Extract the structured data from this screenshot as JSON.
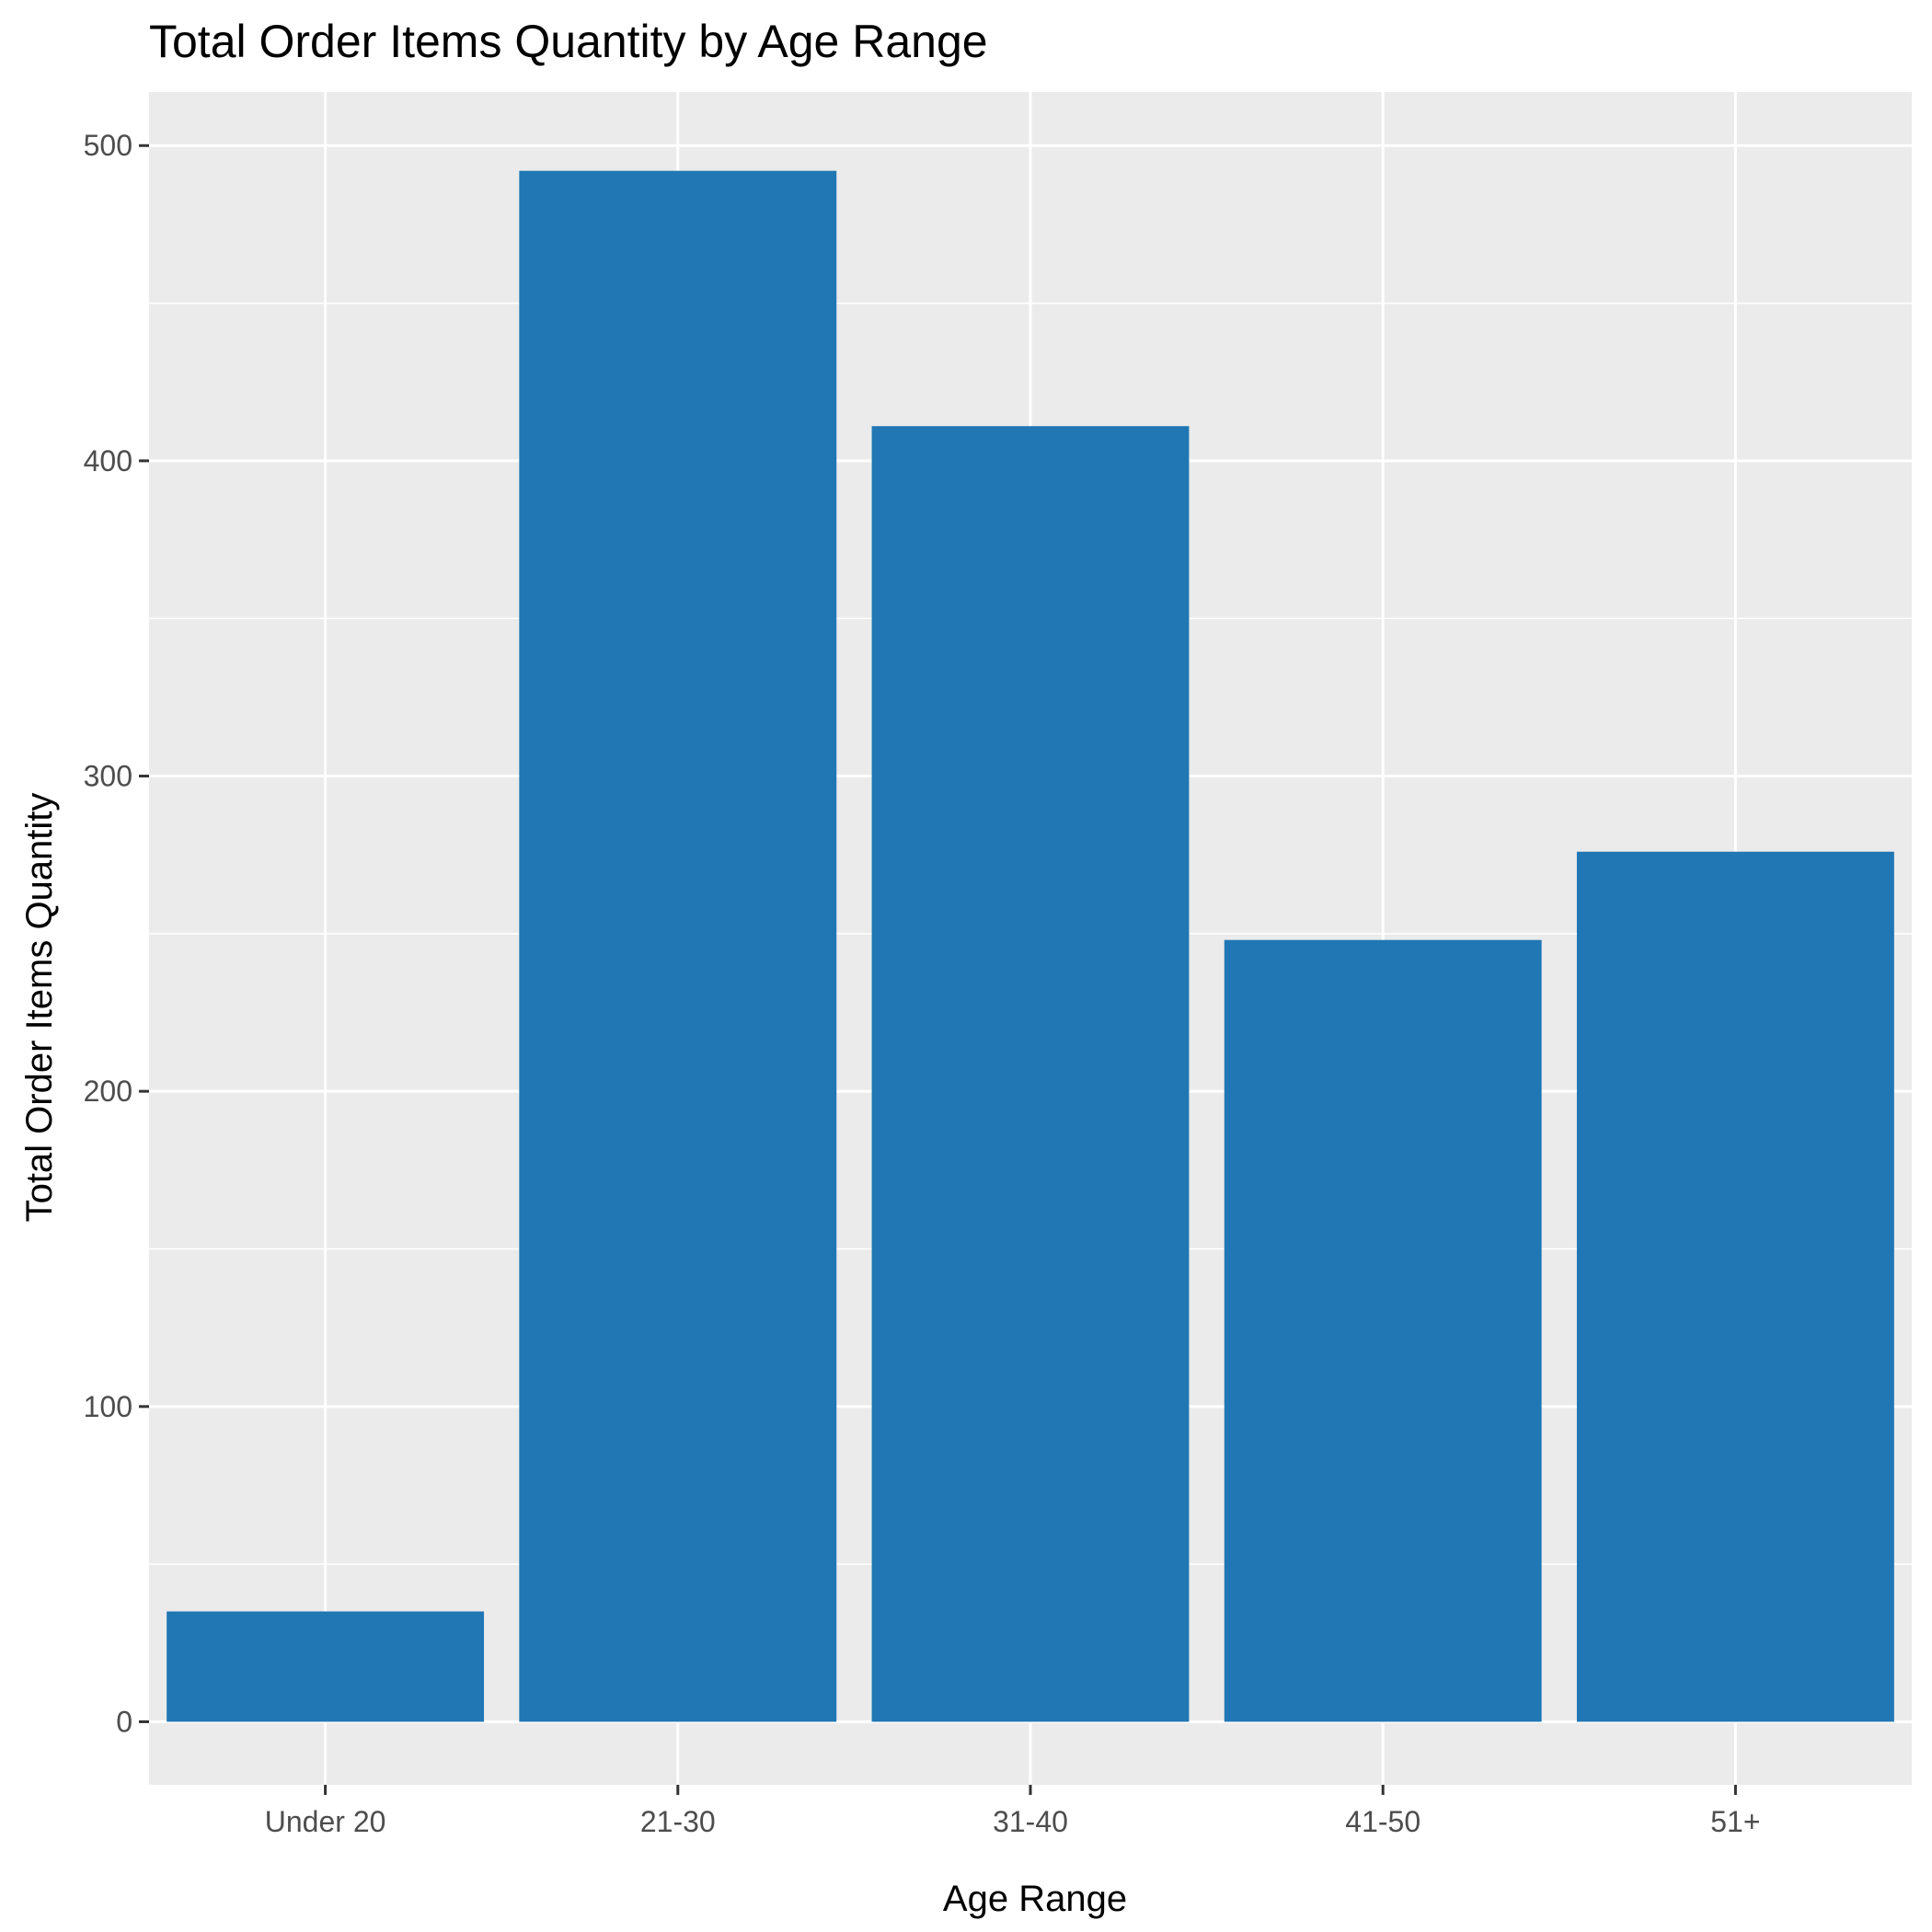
{
  "chart_data": {
    "type": "bar",
    "title": "Total Order Items Quantity by Age Range",
    "xlabel": "Age Range",
    "ylabel": "Total Order Items Quantity",
    "categories": [
      "Under 20",
      "21-30",
      "31-40",
      "41-50",
      "51+"
    ],
    "values": [
      35,
      492,
      411,
      248,
      276
    ],
    "ylim": [
      -20,
      517
    ],
    "yticks": [
      0,
      100,
      200,
      300,
      400,
      500
    ],
    "yticks_minor": [
      50,
      150,
      250,
      350,
      450
    ],
    "grid": true,
    "colors": {
      "bar": "#2077b4",
      "panel": "#ebebeb",
      "grid": "#ffffff",
      "tick": "#333333"
    }
  }
}
